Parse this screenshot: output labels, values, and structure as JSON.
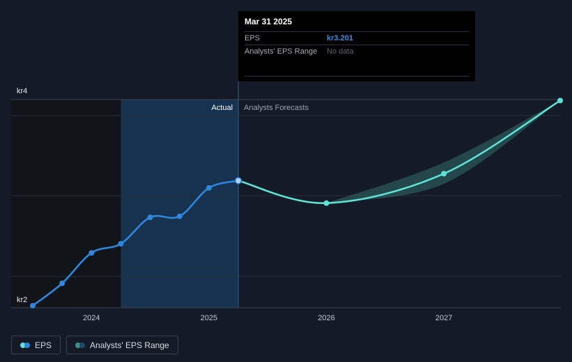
{
  "tooltip": {
    "date": "Mar 31 2025",
    "rows": [
      {
        "label": "EPS",
        "value": "kr3.201"
      },
      {
        "label": "Analysts' EPS Range",
        "value": "No data"
      }
    ]
  },
  "section_labels": {
    "actual": "Actual",
    "forecast": "Analysts Forecasts"
  },
  "legend": [
    {
      "label": "EPS",
      "colors": [
        "#60e0d6",
        "#2e86de"
      ]
    },
    {
      "label": "Analysts' EPS Range",
      "colors": [
        "#3a8f88",
        "#27486b"
      ]
    }
  ],
  "colors": {
    "actual_line": "#2e86de",
    "forecast_line": "#60e0d6",
    "range_fill": "#2f6c67",
    "highlight_band": "#17324e"
  },
  "chart_data": {
    "type": "line",
    "y_tick_labels": [
      "kr4",
      "kr2"
    ],
    "ylim": [
      1.95,
      4.0
    ],
    "x_tick_labels": [
      "2024",
      "2025",
      "2026",
      "2027"
    ],
    "x_tick_years": [
      2024,
      2025,
      2026,
      2027
    ],
    "xlim": [
      2023.5,
      2027.99
    ],
    "grid": true,
    "series": [
      {
        "name": "EPS",
        "segment": "actual",
        "x": [
          2023.5,
          2023.75,
          2024.0,
          2024.25,
          2024.5,
          2024.75,
          2025.0,
          2025.25
        ],
        "y": [
          1.97,
          2.19,
          2.49,
          2.58,
          2.84,
          2.85,
          3.13,
          3.201
        ]
      },
      {
        "name": "EPS",
        "segment": "forecast",
        "x": [
          2025.25,
          2026.0,
          2027.0,
          2027.99
        ],
        "y": [
          3.201,
          2.98,
          3.27,
          3.99
        ]
      }
    ],
    "range": {
      "x": [
        2026.0,
        2027.0,
        2027.99
      ],
      "low": [
        2.98,
        3.17,
        3.99
      ],
      "high": [
        2.98,
        3.38,
        3.99
      ]
    },
    "highlight_x": [
      2024.25,
      2025.25
    ],
    "shaded_before_x": 2024.25,
    "marker_x": 2025.25
  }
}
